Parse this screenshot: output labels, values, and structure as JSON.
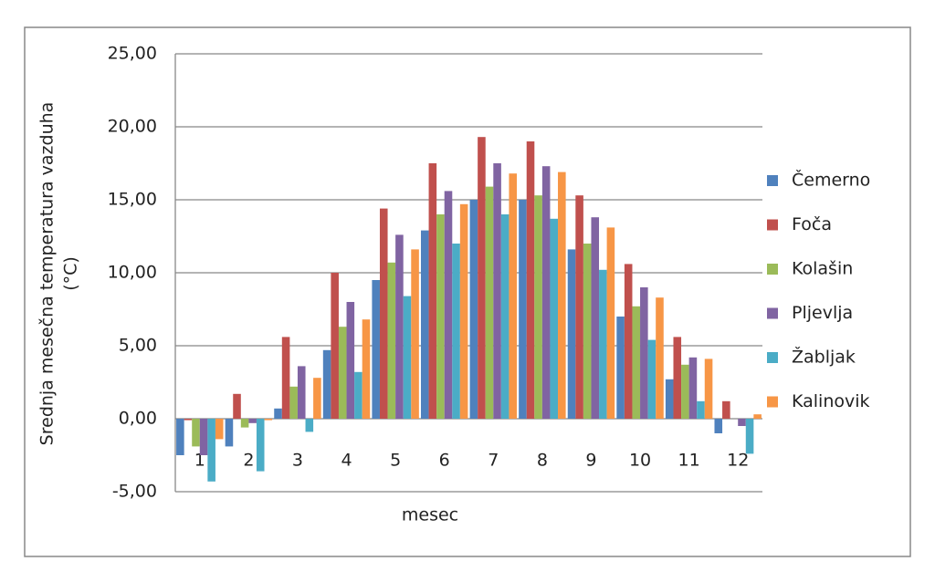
{
  "chart_data": {
    "type": "bar",
    "ylabel": [
      "Srednja mesečna temperatura vazduha",
      "(°C)"
    ],
    "xlabel": "mesec",
    "categories": [
      "1",
      "2",
      "3",
      "4",
      "5",
      "6",
      "7",
      "8",
      "9",
      "10",
      "11",
      "12"
    ],
    "series": [
      {
        "name": "Čemerno",
        "color": "#4f81bd",
        "values": [
          -2.5,
          -1.9,
          0.7,
          4.7,
          9.5,
          12.9,
          15.0,
          15.0,
          11.6,
          7.0,
          2.7,
          -1.0
        ]
      },
      {
        "name": "Foča",
        "color": "#c0504d",
        "values": [
          -0.1,
          1.7,
          5.6,
          10.0,
          14.4,
          17.5,
          19.3,
          19.0,
          15.3,
          10.6,
          5.6,
          1.2
        ]
      },
      {
        "name": "Kolašin",
        "color": "#9bbb59",
        "values": [
          -1.9,
          -0.6,
          2.2,
          6.3,
          10.7,
          14.0,
          15.9,
          15.3,
          12.0,
          7.7,
          3.7,
          0.0
        ]
      },
      {
        "name": "Pljevlja",
        "color": "#8064a2",
        "values": [
          -2.5,
          -0.3,
          3.6,
          8.0,
          12.6,
          15.6,
          17.5,
          17.3,
          13.8,
          9.0,
          4.2,
          -0.5
        ]
      },
      {
        "name": "Žabljak",
        "color": "#4bacc6",
        "values": [
          -4.3,
          -3.6,
          -0.9,
          3.2,
          8.4,
          12.0,
          14.0,
          13.7,
          10.2,
          5.4,
          1.2,
          -2.4
        ]
      },
      {
        "name": "Kalinovik",
        "color": "#f79646",
        "values": [
          -1.4,
          -0.1,
          2.8,
          6.8,
          11.6,
          14.7,
          16.8,
          16.9,
          13.1,
          8.3,
          4.1,
          0.3
        ]
      }
    ],
    "ylim": [
      -5,
      25
    ],
    "yticks": [
      {
        "value": -5,
        "label": "-5,00"
      },
      {
        "value": 0,
        "label": "0,00"
      },
      {
        "value": 5,
        "label": "5,00"
      },
      {
        "value": 10,
        "label": "10,00"
      },
      {
        "value": 15,
        "label": "15,00"
      },
      {
        "value": 20,
        "label": "20,00"
      },
      {
        "value": 25,
        "label": "25,00"
      }
    ],
    "grid": true,
    "legend": "right"
  }
}
